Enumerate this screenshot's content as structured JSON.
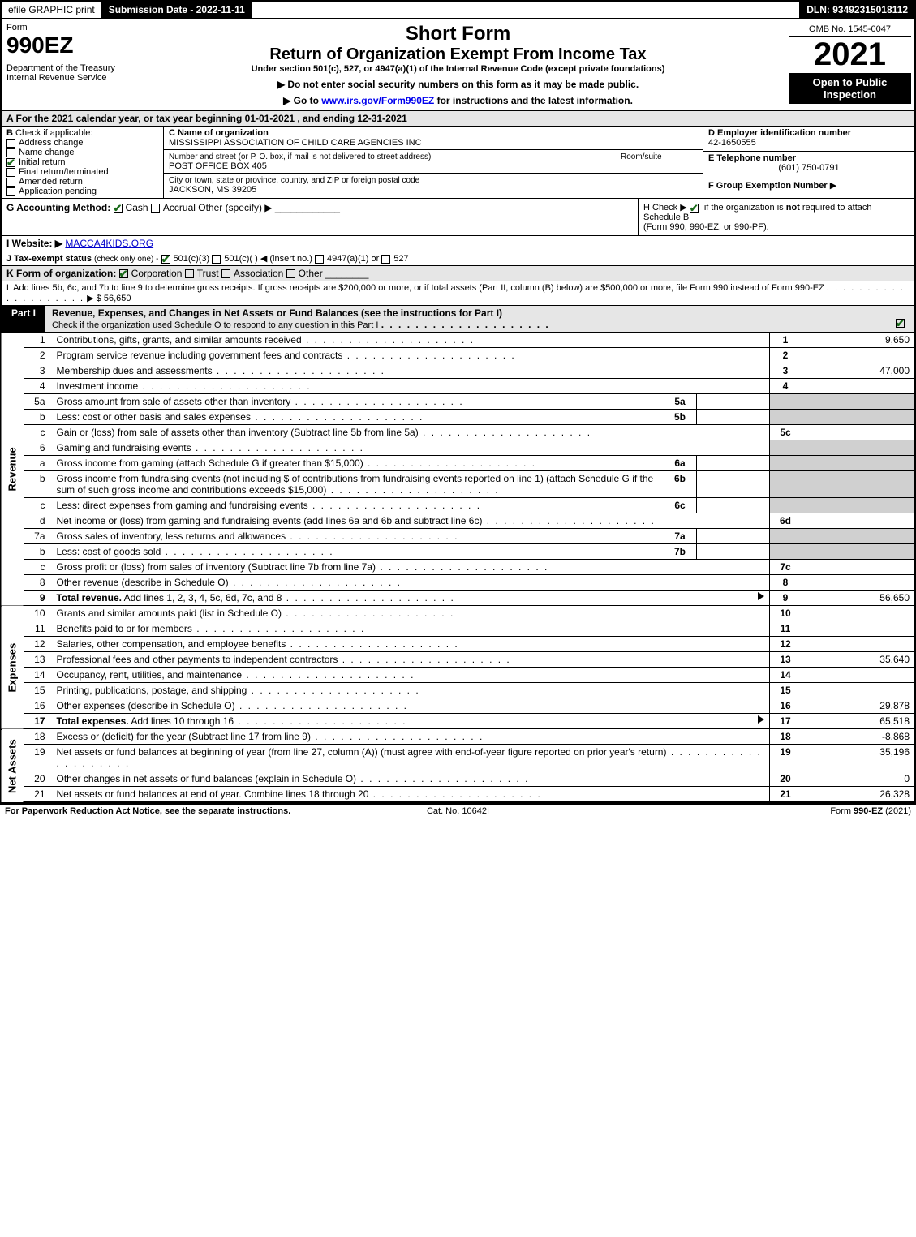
{
  "topbar": {
    "efile": "efile GRAPHIC print",
    "submission_label": "Submission Date - 2022-11-11",
    "dln_label": "DLN: 93492315018112"
  },
  "header": {
    "form_word": "Form",
    "form_number": "990EZ",
    "dept": "Department of the Treasury\nInternal Revenue Service",
    "title_short": "Short Form",
    "title_main": "Return of Organization Exempt From Income Tax",
    "subtitle": "Under section 501(c), 527, or 4947(a)(1) of the Internal Revenue Code (except private foundations)",
    "note1": "▶ Do not enter social security numbers on this form as it may be made public.",
    "note2_pre": "▶ Go to ",
    "note2_link": "www.irs.gov/Form990EZ",
    "note2_post": " for instructions and the latest information.",
    "omb": "OMB No. 1545-0047",
    "year": "2021",
    "open": "Open to Public Inspection"
  },
  "section_a": "A  For the 2021 calendar year, or tax year beginning 01-01-2021 , and ending 12-31-2021",
  "box_b": {
    "label": "B",
    "check_if": "Check if applicable:",
    "items": [
      "Address change",
      "Name change",
      "Initial return",
      "Final return/terminated",
      "Amended return",
      "Application pending"
    ],
    "checked_index": 2
  },
  "box_c": {
    "name_label": "C Name of organization",
    "name": "MISSISSIPPI ASSOCIATION OF CHILD CARE AGENCIES INC",
    "street_label": "Number and street (or P. O. box, if mail is not delivered to street address)",
    "room_label": "Room/suite",
    "street": "POST OFFICE BOX 405",
    "city_label": "City or town, state or province, country, and ZIP or foreign postal code",
    "city": "JACKSON, MS  39205"
  },
  "box_d": {
    "ein_label": "D Employer identification number",
    "ein": "42-1650555",
    "tel_label": "E Telephone number",
    "tel": "(601) 750-0791",
    "group_label": "F Group Exemption Number",
    "group_arrow": "▶"
  },
  "line_g": {
    "label": "G Accounting Method:",
    "cash": "Cash",
    "accrual": "Accrual",
    "other": "Other (specify) ▶"
  },
  "line_h": {
    "text_pre": "H  Check ▶ ",
    "text_post": " if the organization is ",
    "not": "not",
    "text2": " required to attach Schedule B",
    "text3": "(Form 990, 990-EZ, or 990-PF)."
  },
  "line_i": {
    "label": "I Website: ▶",
    "value": "MACCA4KIDS.ORG"
  },
  "line_j": {
    "label": "J Tax-exempt status",
    "sub": "(check only one) -",
    "opt1": "501(c)(3)",
    "opt2": "501(c)(  ) ◀ (insert no.)",
    "opt3": "4947(a)(1) or",
    "opt4": "527"
  },
  "line_k": {
    "label": "K Form of organization:",
    "corp": "Corporation",
    "trust": "Trust",
    "assoc": "Association",
    "other": "Other"
  },
  "line_l": {
    "text": "L Add lines 5b, 6c, and 7b to line 9 to determine gross receipts. If gross receipts are $200,000 or more, or if total assets (Part II, column (B) below) are $500,000 or more, file Form 990 instead of Form 990-EZ",
    "amount": "▶ $ 56,650"
  },
  "part1": {
    "tab": "Part I",
    "title": "Revenue, Expenses, and Changes in Net Assets or Fund Balances (see the instructions for Part I)",
    "sub": "Check if the organization used Schedule O to respond to any question in this Part I"
  },
  "sides": {
    "revenue": "Revenue",
    "expenses": "Expenses",
    "netassets": "Net Assets"
  },
  "rows": [
    {
      "no": "1",
      "desc": "Contributions, gifts, grants, and similar amounts received",
      "rno": "1",
      "rval": "9,650"
    },
    {
      "no": "2",
      "desc": "Program service revenue including government fees and contracts",
      "rno": "2",
      "rval": ""
    },
    {
      "no": "3",
      "desc": "Membership dues and assessments",
      "rno": "3",
      "rval": "47,000"
    },
    {
      "no": "4",
      "desc": "Investment income",
      "rno": "4",
      "rval": ""
    },
    {
      "no": "5a",
      "desc": "Gross amount from sale of assets other than inventory",
      "midno": "5a",
      "midval": "",
      "shade": true
    },
    {
      "no": "b",
      "desc": "Less: cost or other basis and sales expenses",
      "midno": "5b",
      "midval": "",
      "shade": true
    },
    {
      "no": "c",
      "desc": "Gain or (loss) from sale of assets other than inventory (Subtract line 5b from line 5a)",
      "rno": "5c",
      "rval": ""
    },
    {
      "no": "6",
      "desc": "Gaming and fundraising events",
      "shade": true,
      "noval": true
    },
    {
      "no": "a",
      "desc": "Gross income from gaming (attach Schedule G if greater than $15,000)",
      "midno": "6a",
      "midval": "",
      "shade": true
    },
    {
      "no": "b",
      "desc": "Gross income from fundraising events (not including $                     of contributions from fundraising events reported on line 1) (attach Schedule G if the sum of such gross income and contributions exceeds $15,000)",
      "midno": "6b",
      "midval": "",
      "shade": true
    },
    {
      "no": "c",
      "desc": "Less: direct expenses from gaming and fundraising events",
      "midno": "6c",
      "midval": "",
      "shade": true
    },
    {
      "no": "d",
      "desc": "Net income or (loss) from gaming and fundraising events (add lines 6a and 6b and subtract line 6c)",
      "rno": "6d",
      "rval": ""
    },
    {
      "no": "7a",
      "desc": "Gross sales of inventory, less returns and allowances",
      "midno": "7a",
      "midval": "",
      "shade": true
    },
    {
      "no": "b",
      "desc": "Less: cost of goods sold",
      "midno": "7b",
      "midval": "",
      "shade": true
    },
    {
      "no": "c",
      "desc": "Gross profit or (loss) from sales of inventory (Subtract line 7b from line 7a)",
      "rno": "7c",
      "rval": ""
    },
    {
      "no": "8",
      "desc": "Other revenue (describe in Schedule O)",
      "rno": "8",
      "rval": ""
    },
    {
      "no": "9",
      "desc": "Total revenue. Add lines 1, 2, 3, 4, 5c, 6d, 7c, and 8",
      "rno": "9",
      "rval": "56,650",
      "bold": true,
      "arrow": true
    }
  ],
  "exp_rows": [
    {
      "no": "10",
      "desc": "Grants and similar amounts paid (list in Schedule O)",
      "rno": "10",
      "rval": ""
    },
    {
      "no": "11",
      "desc": "Benefits paid to or for members",
      "rno": "11",
      "rval": ""
    },
    {
      "no": "12",
      "desc": "Salaries, other compensation, and employee benefits",
      "rno": "12",
      "rval": ""
    },
    {
      "no": "13",
      "desc": "Professional fees and other payments to independent contractors",
      "rno": "13",
      "rval": "35,640"
    },
    {
      "no": "14",
      "desc": "Occupancy, rent, utilities, and maintenance",
      "rno": "14",
      "rval": ""
    },
    {
      "no": "15",
      "desc": "Printing, publications, postage, and shipping",
      "rno": "15",
      "rval": ""
    },
    {
      "no": "16",
      "desc": "Other expenses (describe in Schedule O)",
      "rno": "16",
      "rval": "29,878"
    },
    {
      "no": "17",
      "desc": "Total expenses. Add lines 10 through 16",
      "rno": "17",
      "rval": "65,518",
      "bold": true,
      "arrow": true
    }
  ],
  "na_rows": [
    {
      "no": "18",
      "desc": "Excess or (deficit) for the year (Subtract line 17 from line 9)",
      "rno": "18",
      "rval": "-8,868"
    },
    {
      "no": "19",
      "desc": "Net assets or fund balances at beginning of year (from line 27, column (A)) (must agree with end-of-year figure reported on prior year's return)",
      "rno": "19",
      "rval": "35,196"
    },
    {
      "no": "20",
      "desc": "Other changes in net assets or fund balances (explain in Schedule O)",
      "rno": "20",
      "rval": "0"
    },
    {
      "no": "21",
      "desc": "Net assets or fund balances at end of year. Combine lines 18 through 20",
      "rno": "21",
      "rval": "26,328"
    }
  ],
  "footer": {
    "left": "For Paperwork Reduction Act Notice, see the separate instructions.",
    "center": "Cat. No. 10642I",
    "right_pre": "Form ",
    "right_bold": "990-EZ",
    "right_post": " (2021)"
  },
  "colors": {
    "black": "#000000",
    "grey_header": "#e6e6e6",
    "grey_shade": "#d0d0d0",
    "link": "#0000cc",
    "check_green": "#1a6b1a"
  }
}
